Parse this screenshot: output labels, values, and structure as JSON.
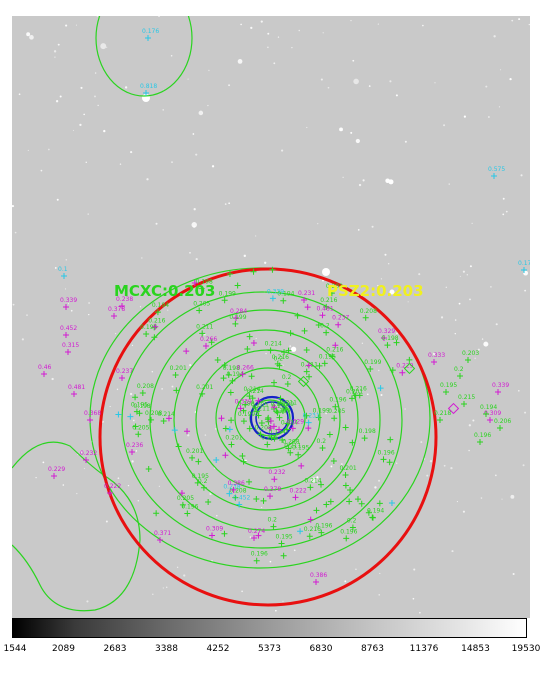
{
  "labels": {
    "mcxc": "MCXC:0.203",
    "psz2": "PSZ2:0.203"
  },
  "colorbar": {
    "ticks": [
      "1544",
      "2089",
      "2683",
      "3388",
      "4252",
      "5373",
      "6830",
      "8763",
      "11376",
      "14853",
      "19530"
    ]
  },
  "redshifts_cyan": [
    "0.176",
    "0.818",
    "0.575",
    "0.1",
    "0.17"
  ],
  "redshifts_magenta": [
    "0.339",
    "0.452",
    "0.315",
    "0.378",
    "0.481",
    "0.46",
    "0.229",
    "0.232",
    "0.368",
    "0.222",
    "0.237",
    "0.236",
    "0.238",
    "0.231",
    "0.284",
    "0.266",
    "0.329",
    "0.333",
    "0.339",
    "0.309",
    "0.371",
    "0.386",
    "0.274"
  ],
  "redshifts_green": [
    "0.2",
    "0.204",
    "0.201",
    "0.203",
    "0.199",
    "0.186",
    "0.195",
    "0.207",
    "0.198",
    "0.215",
    "0.208",
    "0.2",
    "0.194",
    "0.212",
    "0.211",
    "0.206",
    "0.205",
    "0.197",
    "0.196",
    "0.217",
    "0.216",
    "0.218",
    "0.214",
    "0.225"
  ],
  "colors": {
    "green": "#2ad41f",
    "red": "#e81010",
    "blue": "#1420c8",
    "magenta": "#d21ad2",
    "cyan": "#28c8e6",
    "yellow": "#f0f020"
  }
}
